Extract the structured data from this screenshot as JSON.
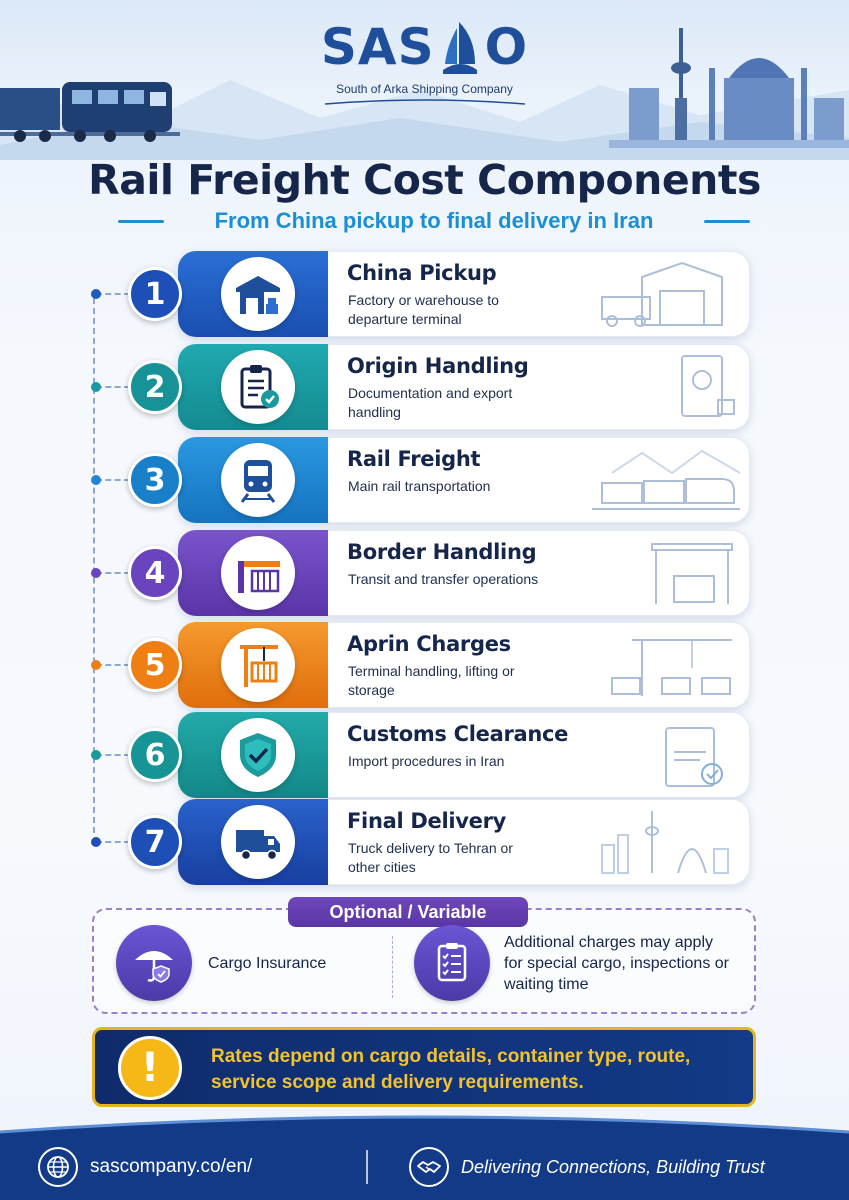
{
  "brand": {
    "logo_left": "SAS",
    "logo_right": "O",
    "tagline": "South of Arka Shipping Company",
    "colors": {
      "navy": "#16254a",
      "blue": "#1f4f9a",
      "accent": "#1b8fd1"
    }
  },
  "header": {
    "title": "Rail Freight Cost Components",
    "subtitle": "From China pickup to final delivery in Iran"
  },
  "steps": [
    {
      "number": "1",
      "title": "China Pickup",
      "desc": "Factory or warehouse to departure terminal",
      "icon": "warehouse-icon",
      "color": "#1d5bbf"
    },
    {
      "number": "2",
      "title": "Origin Handling",
      "desc": "Documentation and export handling",
      "icon": "clipboard-check-icon",
      "color": "#1a9aa0"
    },
    {
      "number": "3",
      "title": "Rail Freight",
      "desc": "Main rail transportation",
      "icon": "train-icon",
      "color": "#1f86d4"
    },
    {
      "number": "4",
      "title": "Border Handling",
      "desc": "Transit and transfer operations",
      "icon": "border-gate-icon",
      "color": "#6a43bf"
    },
    {
      "number": "5",
      "title": "Aprin Charges",
      "desc": "Terminal handling, lifting or storage",
      "icon": "crane-icon",
      "color": "#ef7f15"
    },
    {
      "number": "6",
      "title": "Customs Clearance",
      "desc": "Import procedures in Iran",
      "icon": "shield-check-icon",
      "color": "#1b9b9b"
    },
    {
      "number": "7",
      "title": "Final Delivery",
      "desc": "Truck delivery to Tehran or other cities",
      "icon": "truck-icon",
      "color": "#1d4fb6"
    }
  ],
  "optional": {
    "tag": "Optional / Variable",
    "insurance": {
      "label": "Cargo Insurance",
      "icon": "umbrella-shield-icon"
    },
    "additional": {
      "label": "Additional charges may apply for special cargo, inspections or waiting time",
      "icon": "checklist-icon"
    }
  },
  "notice": {
    "icon": "exclamation-icon",
    "text": "Rates depend on cargo details, container type, route, service scope and delivery requirements."
  },
  "footer": {
    "url": "sascompany.co/en/",
    "motto": "Delivering Connections, Building Trust",
    "url_icon": "globe-icon",
    "motto_icon": "handshake-icon"
  }
}
